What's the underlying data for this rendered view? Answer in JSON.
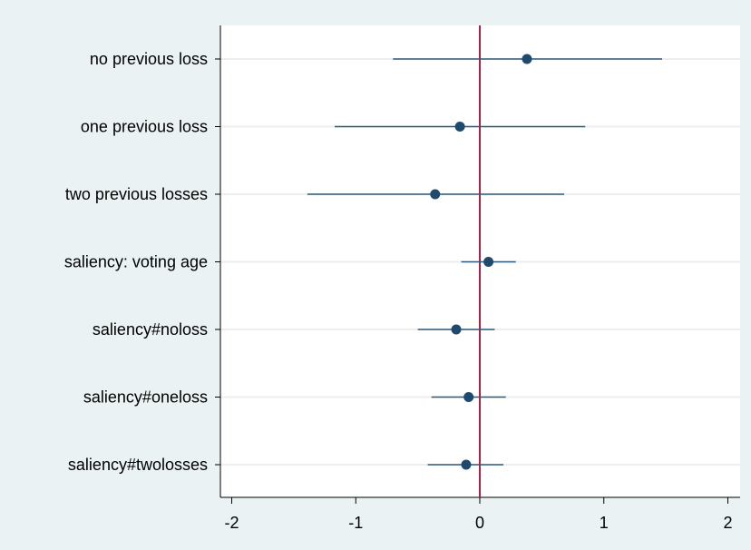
{
  "chart_data": {
    "type": "coefficient-plot",
    "title": "",
    "xlabel": "",
    "ylabel": "",
    "xlim": [
      -2.1,
      2.1
    ],
    "x_ticks": [
      -2,
      -1,
      0,
      1,
      2
    ],
    "x_tick_labels": [
      "-2",
      "-1",
      "0",
      "1",
      "2"
    ],
    "reference_line_x": 0,
    "grid": "horizontal",
    "legend": "none",
    "colors": {
      "marker": "#1f4a6e",
      "ci_line": "#2d5a7c",
      "reference_line": "#b22045",
      "grid": "#eeeeee",
      "plot_bg": "#ffffff",
      "outer_bg": "#eaf2f3"
    },
    "categories": [
      "no previous loss",
      "one previous loss",
      "two previous losses",
      "saliency: voting age",
      "saliency#noloss",
      "saliency#oneloss",
      "saliency#twolosses"
    ],
    "estimates": [
      0.38,
      -0.16,
      -0.36,
      0.07,
      -0.19,
      -0.09,
      -0.11
    ],
    "ci_low": [
      -0.7,
      -1.17,
      -1.39,
      -0.15,
      -0.5,
      -0.39,
      -0.42
    ],
    "ci_high": [
      1.47,
      0.85,
      0.68,
      0.29,
      0.12,
      0.21,
      0.19
    ]
  }
}
